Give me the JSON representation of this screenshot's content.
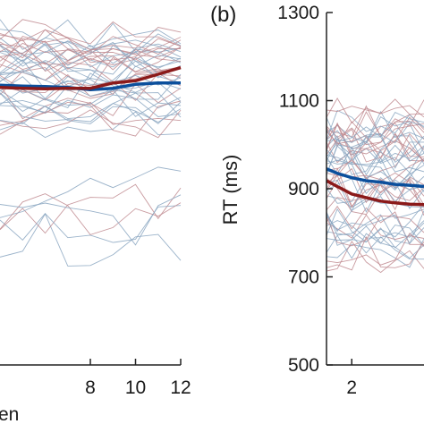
{
  "chart_data": [
    {
      "type": "line",
      "panel_label": "",
      "xlabel": "en",
      "ylabel": "",
      "x_ticks": [
        8,
        10,
        12
      ],
      "xlim": [
        4,
        12
      ],
      "ylim": [
        500,
        1300
      ],
      "grid": false,
      "colors": {
        "blue": "#0b4f9c",
        "red": "#8b1a1a",
        "thin_blue": "#8aa6c1",
        "thin_red": "#c08a8f"
      },
      "series": [
        {
          "values_x": [
            4,
            5,
            6,
            7,
            8,
            9,
            10,
            11,
            12
          ],
          "values_y": [
            1135,
            1133,
            1132,
            1130,
            1125,
            1128,
            1137,
            1140,
            1140
          ],
          "color": "blue"
        },
        {
          "values_x": [
            4,
            5,
            6,
            7,
            8,
            9,
            10,
            11,
            12
          ],
          "values_y": [
            1130,
            1128,
            1127,
            1128,
            1128,
            1140,
            1145,
            1160,
            1175
          ],
          "color": "red"
        }
      ]
    },
    {
      "type": "line",
      "panel_label": "(b)",
      "xlabel": "",
      "ylabel": "RT (ms)",
      "y_ticks": [
        500,
        700,
        900,
        1100,
        1300
      ],
      "x_ticks": [
        2
      ],
      "xlim": [
        1.3,
        4
      ],
      "ylim": [
        500,
        1300
      ],
      "grid": false,
      "colors": {
        "blue": "#0b4f9c",
        "red": "#8b1a1a",
        "thin_blue": "#8aa6c1",
        "thin_red": "#c08a8f"
      },
      "series": [
        {
          "values_x": [
            1.3,
            1.6,
            2,
            2.4,
            2.8,
            3.2,
            3.6,
            4
          ],
          "values_y": [
            945,
            935,
            925,
            918,
            915,
            910,
            908,
            905
          ],
          "color": "blue"
        },
        {
          "values_x": [
            1.3,
            1.6,
            2,
            2.4,
            2.8,
            3.2,
            3.6,
            4
          ],
          "values_y": [
            918,
            905,
            888,
            880,
            872,
            868,
            865,
            864
          ],
          "color": "red"
        }
      ]
    }
  ]
}
